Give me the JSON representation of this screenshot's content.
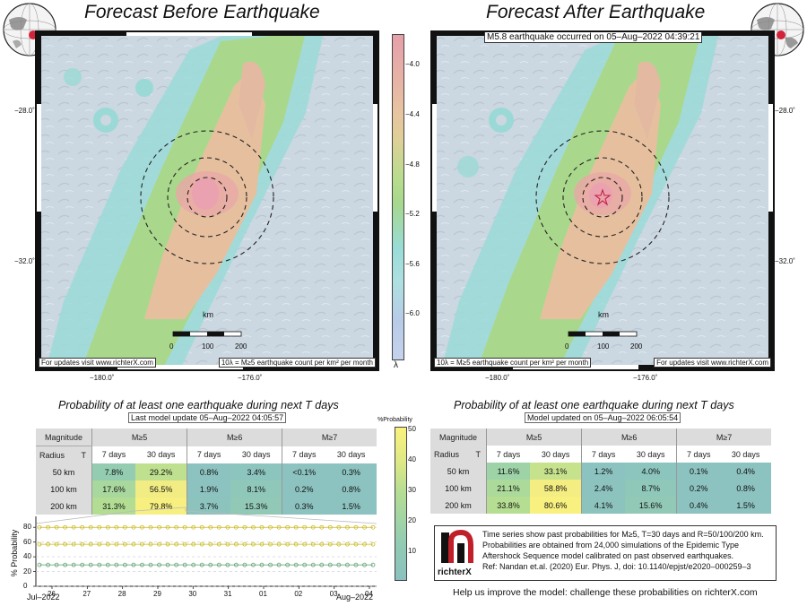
{
  "left_title": "Forecast Before Earthquake",
  "right_title": "Forecast After Earthquake",
  "event_banner": "M5.8 earthquake occurred on 05–Aug–2022 04:39:21",
  "map_credit": "For updates visit www.richterX.com",
  "density_label": "10λ = M≥5 earthquake count per km² per month",
  "scale_unit": "km",
  "scale_ticks": [
    "0",
    "100",
    "200"
  ],
  "lat_labels": [
    "−28.0˚",
    "−32.0˚"
  ],
  "lon_labels": [
    "−180.0˚",
    "−176.0˚"
  ],
  "lambda_colorbar": {
    "ticks": [
      "−4.0",
      "−4.4",
      "−4.8",
      "−5.2",
      "−5.6",
      "−6.0"
    ],
    "symbol": "λ"
  },
  "prob_colorbar": {
    "label": "%Probability",
    "ticks": [
      "50",
      "40",
      "30",
      "20",
      "10"
    ]
  },
  "left_panel": {
    "subtitle": "Probability of at least one earthquake during next T days",
    "update": "Last model update 05–Aug–2022 04:05:57",
    "header_magnitude": "Magnitude",
    "header_radius": "Radius",
    "header_t": "T",
    "magnitudes": [
      "M≥5",
      "M≥6",
      "M≥7"
    ],
    "periods": [
      "7 days",
      "30 days",
      "7 days",
      "30 days",
      "7 days",
      "30 days"
    ],
    "rows": [
      {
        "radius": "50 km",
        "values": [
          "7.8%",
          "29.2%",
          "0.8%",
          "3.4%",
          "<0.1%",
          "0.3%"
        ]
      },
      {
        "radius": "100 km",
        "values": [
          "17.6%",
          "56.5%",
          "1.9%",
          "8.1%",
          "0.2%",
          "0.8%"
        ]
      },
      {
        "radius": "200 km",
        "values": [
          "31.3%",
          "79.8%",
          "3.7%",
          "15.3%",
          "0.3%",
          "1.5%"
        ]
      }
    ],
    "cell_colors": [
      [
        "#93ccb1",
        "#bfe08f",
        "#8cc2bf",
        "#8cc4be",
        "#8cc2bf",
        "#8cc2bf"
      ],
      [
        "#a8d89e",
        "#f2ec84",
        "#8cc2bf",
        "#8fc7b9",
        "#8cc2bf",
        "#8cc2bf"
      ],
      [
        "#b2dd93",
        "#f7f080",
        "#8cc3bd",
        "#91c9b6",
        "#8cc2bf",
        "#8cc2bf"
      ]
    ]
  },
  "right_panel": {
    "subtitle": "Probability of at least one earthquake during next T days",
    "update": "Model updated on 05–Aug–2022 06:05:54",
    "header_magnitude": "Magnitude",
    "header_radius": "Radius",
    "header_t": "T",
    "magnitudes": [
      "M≥5",
      "M≥6",
      "M≥7"
    ],
    "periods": [
      "7 days",
      "30 days",
      "7 days",
      "30 days",
      "7 days",
      "30 days"
    ],
    "rows": [
      {
        "radius": "50 km",
        "values": [
          "11.6%",
          "33.1%",
          "1.2%",
          "4.0%",
          "0.1%",
          "0.4%"
        ]
      },
      {
        "radius": "100 km",
        "values": [
          "21.1%",
          "58.8%",
          "2.4%",
          "8.7%",
          "0.2%",
          "0.8%"
        ]
      },
      {
        "radius": "200 km",
        "values": [
          "33.8%",
          "80.6%",
          "4.1%",
          "15.6%",
          "0.4%",
          "1.5%"
        ]
      }
    ],
    "cell_colors": [
      [
        "#9dd3a7",
        "#c6e28d",
        "#8cc2bf",
        "#8cc5bd",
        "#8cc2bf",
        "#8cc2bf"
      ],
      [
        "#acda9a",
        "#f4ed82",
        "#8cc3be",
        "#8fc7b9",
        "#8cc2bf",
        "#8cc2bf"
      ],
      [
        "#b6de92",
        "#f8f07f",
        "#8cc3bd",
        "#92c9b6",
        "#8cc2bf",
        "#8cc2bf"
      ]
    ]
  },
  "chart_data": {
    "type": "line",
    "ylabel": "% Probability",
    "ylim": [
      0,
      90
    ],
    "yticks": [
      "0",
      "20",
      "40",
      "60",
      "80"
    ],
    "x_tick_labels": [
      "26",
      "27",
      "28",
      "29",
      "30",
      "31",
      "01",
      "02",
      "03",
      "04"
    ],
    "x_month_labels": [
      "Jul–2022",
      "Aug–2022"
    ],
    "series": [
      {
        "label_radius": "200 km",
        "color": "#c9b81a",
        "values": [
          80,
          80,
          80,
          80,
          80,
          80,
          80,
          80,
          80,
          80,
          80,
          80,
          80,
          80,
          80,
          80,
          80,
          80,
          80,
          80,
          80,
          80,
          80,
          80,
          80,
          80,
          80,
          80,
          80,
          80,
          80,
          80,
          80,
          80,
          80,
          80,
          80,
          80,
          80,
          80
        ]
      },
      {
        "label_radius": "100 km",
        "color": "#c9b81a",
        "values": [
          57,
          57,
          57,
          57,
          57,
          57,
          57,
          57,
          57,
          57,
          57,
          57,
          57,
          57,
          57,
          57,
          57,
          57,
          57,
          57,
          57,
          57,
          57,
          57,
          57,
          57,
          57,
          57,
          57,
          57,
          57,
          57,
          57,
          57,
          57,
          57,
          57,
          57,
          57,
          57
        ]
      },
      {
        "label_radius": "50 km",
        "color": "#5a9e6a",
        "values": [
          29,
          29,
          29,
          29,
          29,
          29,
          29,
          29,
          29,
          29,
          29,
          29,
          29,
          29,
          29,
          29,
          29,
          29,
          29,
          29,
          29,
          29,
          29,
          29,
          29,
          29,
          29,
          29,
          29,
          29,
          29,
          29,
          29,
          29,
          29,
          29,
          29,
          29,
          29,
          29
        ]
      }
    ]
  },
  "info_lines": [
    "Time series show past probabilities for M≥5, T=30 days and R=50/100/200 km.",
    "Probabilities are obtained from 24,000 simulations of the Epidemic Type",
    "Aftershock Sequence model calibrated on past observed earthquakes.",
    "Ref: Nandan et.al. (2020) Eur. Phys. J, doi: 10.1140/epjst/e2020–000259–3"
  ],
  "logo_text": "richterX",
  "footer": "Help us improve the model: challenge these probabilities on richterX.com",
  "colors": {
    "map_sea": "#c9d7e2",
    "high_rate": "#e7a2a8",
    "mid_rate": "#e9bf9f",
    "green_band": "#a9d38c",
    "teal_band": "#8fd2cf"
  }
}
